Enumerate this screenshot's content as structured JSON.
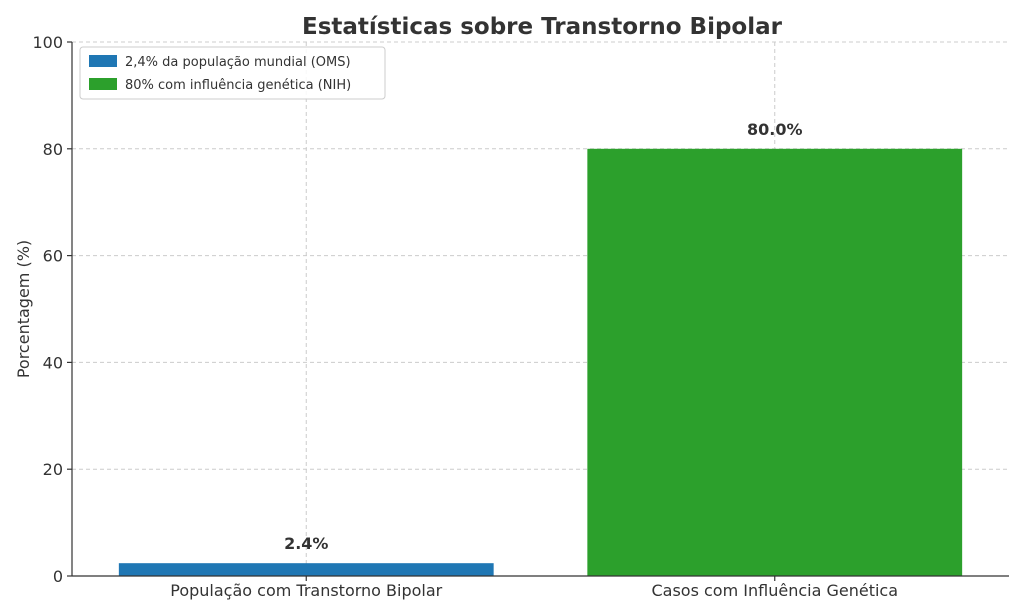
{
  "chart_data": {
    "type": "bar",
    "title": "Estatísticas sobre Transtorno Bipolar",
    "xlabel": "",
    "ylabel": "Porcentagem (%)",
    "ylim": [
      0,
      100
    ],
    "yticks": [
      0,
      20,
      40,
      60,
      80,
      100
    ],
    "grid": true,
    "legend_position": "top-left",
    "categories": [
      "População com Transtorno Bipolar",
      "Casos com Influência Genética"
    ],
    "values": [
      2.4,
      80.0
    ],
    "data_labels": [
      "2.4%",
      "80.0%"
    ],
    "colors": [
      "#1f77b4",
      "#2ca02c"
    ],
    "legend": [
      {
        "label": "2,4% da população mundial (OMS)",
        "color": "#1f77b4"
      },
      {
        "label": "80% com influência genética (NIH)",
        "color": "#2ca02c"
      }
    ]
  }
}
